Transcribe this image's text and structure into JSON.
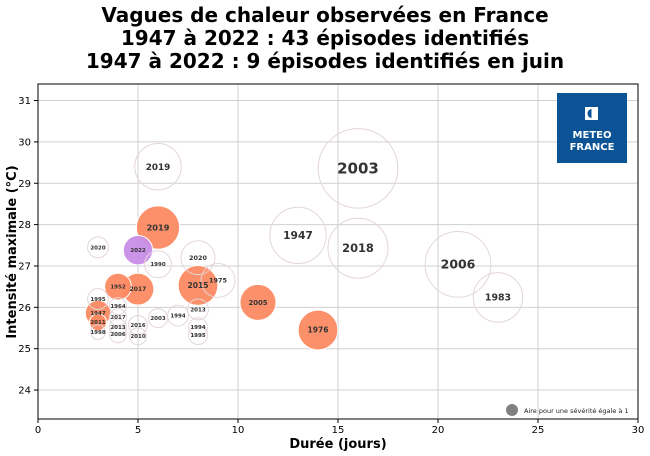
{
  "chart_data": {
    "type": "scatter",
    "title": [
      "Vagues de chaleur observées en France",
      "1947 à 2022 : 43 épisodes identifiés",
      "1947 à 2022 : 9 épisodes identifiés en juin"
    ],
    "xlabel": "Durée (jours)",
    "ylabel": "Intensité maximale (°C)",
    "xlim": [
      0,
      30
    ],
    "ylim": [
      23.3,
      31.4
    ],
    "xticks": [
      "0",
      "5",
      "10",
      "15",
      "20",
      "25",
      "30"
    ],
    "yticks": [
      "24",
      "25",
      "26",
      "27",
      "28",
      "29",
      "30",
      "31"
    ],
    "grid": true,
    "size_legend": "Aire pour une sévérité égale à 1",
    "size_legend_placement": "bottom-right",
    "logo": "METEO FRANCE",
    "colors": {
      "june": "#fc8a62",
      "june_2022": "#c98ee8",
      "other_stroke": "#e3d5dc",
      "legend_marker": "#808080",
      "logo_bg": "#0b5394"
    },
    "points": [
      {
        "label": "2003",
        "x": 16,
        "y": 29.36,
        "severity": 44,
        "group": "other"
      },
      {
        "label": "2019",
        "x": 6,
        "y": 29.4,
        "severity": 15,
        "group": "other"
      },
      {
        "label": "2019",
        "x": 6,
        "y": 27.93,
        "severity": 13,
        "group": "june"
      },
      {
        "label": "1947",
        "x": 13,
        "y": 27.74,
        "severity": 22,
        "group": "other"
      },
      {
        "label": "2018",
        "x": 16,
        "y": 27.43,
        "severity": 25,
        "group": "other"
      },
      {
        "label": "2006",
        "x": 21,
        "y": 27.04,
        "severity": 30,
        "group": "other"
      },
      {
        "label": "1983",
        "x": 23,
        "y": 26.24,
        "severity": 17,
        "group": "other"
      },
      {
        "label": "1976",
        "x": 14,
        "y": 25.45,
        "severity": 11,
        "group": "june"
      },
      {
        "label": "2005",
        "x": 11,
        "y": 26.12,
        "severity": 9,
        "group": "june"
      },
      {
        "label": "1975",
        "x": 9,
        "y": 26.65,
        "severity": 8,
        "group": "other"
      },
      {
        "label": "2020",
        "x": 8,
        "y": 27.2,
        "severity": 8,
        "group": "other"
      },
      {
        "label": "2015",
        "x": 8,
        "y": 26.53,
        "severity": 11,
        "group": "june"
      },
      {
        "label": "2022",
        "x": 5,
        "y": 27.38,
        "severity": 6,
        "group": "june_2022"
      },
      {
        "label": "2020",
        "x": 3,
        "y": 27.45,
        "severity": 3,
        "group": "other"
      },
      {
        "label": "1990",
        "x": 6,
        "y": 27.04,
        "severity": 5,
        "group": "other"
      },
      {
        "label": "1952",
        "x": 4,
        "y": 26.5,
        "severity": 5,
        "group": "june"
      },
      {
        "label": "2017",
        "x": 5,
        "y": 26.44,
        "severity": 7,
        "group": "june"
      },
      {
        "label": "1995",
        "x": 3,
        "y": 26.2,
        "severity": 3,
        "group": "other"
      },
      {
        "label": "1947",
        "x": 3,
        "y": 25.86,
        "severity": 4.5,
        "group": "june"
      },
      {
        "label": "2011",
        "x": 3,
        "y": 25.64,
        "severity": 2,
        "group": "june"
      },
      {
        "label": "1998",
        "x": 3,
        "y": 25.4,
        "severity": 1.5,
        "group": "other"
      },
      {
        "label": "1964",
        "x": 4,
        "y": 26.03,
        "severity": 2,
        "group": "other"
      },
      {
        "label": "2017",
        "x": 4,
        "y": 25.76,
        "severity": 2,
        "group": "other"
      },
      {
        "label": "2013",
        "x": 4,
        "y": 25.52,
        "severity": 2,
        "group": "other"
      },
      {
        "label": "2006",
        "x": 4,
        "y": 25.35,
        "severity": 2,
        "group": "other"
      },
      {
        "label": "2016",
        "x": 5,
        "y": 25.57,
        "severity": 2.5,
        "group": "other"
      },
      {
        "label": "2010",
        "x": 5,
        "y": 25.3,
        "severity": 2,
        "group": "other"
      },
      {
        "label": "2003",
        "x": 6,
        "y": 25.74,
        "severity": 2.5,
        "group": "other"
      },
      {
        "label": "1994",
        "x": 7,
        "y": 25.8,
        "severity": 3,
        "group": "other"
      },
      {
        "label": "2013",
        "x": 8,
        "y": 25.95,
        "severity": 3,
        "group": "other"
      },
      {
        "label": "1994",
        "x": 8,
        "y": 25.52,
        "severity": 2.5,
        "group": "other"
      },
      {
        "label": "1995",
        "x": 8,
        "y": 25.33,
        "severity": 2.5,
        "group": "other"
      }
    ]
  }
}
